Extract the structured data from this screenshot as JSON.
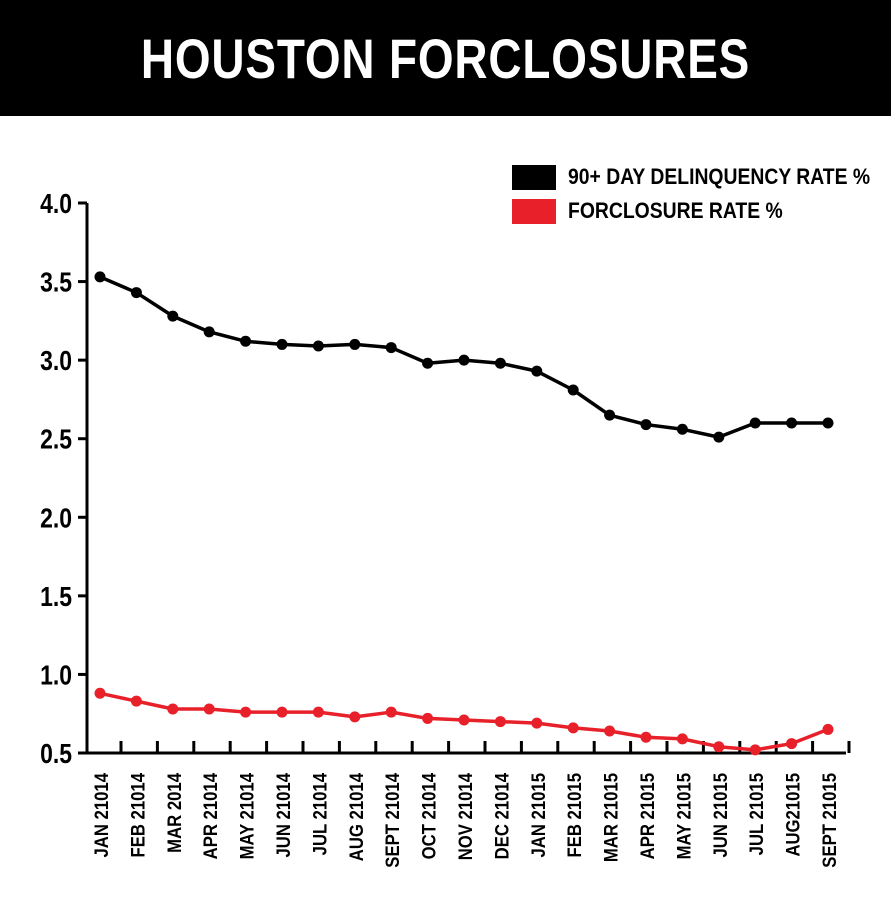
{
  "title": "HOUSTON FORCLOSURES",
  "colors": {
    "background": "#ffffff",
    "title_bar": "#000000",
    "title_text": "#ffffff",
    "series_delinquency": "#000000",
    "series_foreclosure": "#e8202a"
  },
  "legend": {
    "placement": "top-right",
    "items": [
      {
        "label": "90+ DAY DELINQUENCY RATE %",
        "color": "#000000"
      },
      {
        "label": "FORCLOSURE RATE %",
        "color": "#e8202a"
      }
    ]
  },
  "chart_data": {
    "type": "line",
    "title": "HOUSTON FORCLOSURES",
    "xlabel": "",
    "ylabel": "",
    "ylim": [
      0.5,
      4.0
    ],
    "yticks": [
      "4.0",
      "3.5",
      "3.0",
      "2.5",
      "2.0",
      "1.5",
      "1.0",
      "0.5"
    ],
    "grid": false,
    "legend_position": "top-right",
    "categories": [
      "JAN 21014",
      "FEB 21014",
      "MAR 2014",
      "APR 21014",
      "MAY 21014",
      "JUN 21014",
      "JUL 21014",
      "AUG 21014",
      "SEPT 21014",
      "OCT 21014",
      "NOV 21014",
      "DEC 21014",
      "JAN 21015",
      "FEB 21015",
      "MAR 21015",
      "APR 21015",
      "MAY 21015",
      "JUN 21015",
      "JUL 21015",
      "AUG21015",
      "SEPT 21015"
    ],
    "series": [
      {
        "name": "90+ DAY DELINQUENCY RATE %",
        "color": "#000000",
        "values": [
          3.53,
          3.43,
          3.28,
          3.18,
          3.12,
          3.1,
          3.09,
          3.1,
          3.08,
          2.98,
          3.0,
          2.98,
          2.93,
          2.81,
          2.65,
          2.59,
          2.56,
          2.51,
          2.6,
          2.6,
          2.6
        ]
      },
      {
        "name": "FORCLOSURE RATE %",
        "color": "#e8202a",
        "values": [
          0.88,
          0.83,
          0.78,
          0.78,
          0.76,
          0.76,
          0.76,
          0.73,
          0.76,
          0.72,
          0.71,
          0.7,
          0.69,
          0.66,
          0.64,
          0.6,
          0.59,
          0.54,
          0.52,
          0.56,
          0.65
        ]
      }
    ]
  }
}
